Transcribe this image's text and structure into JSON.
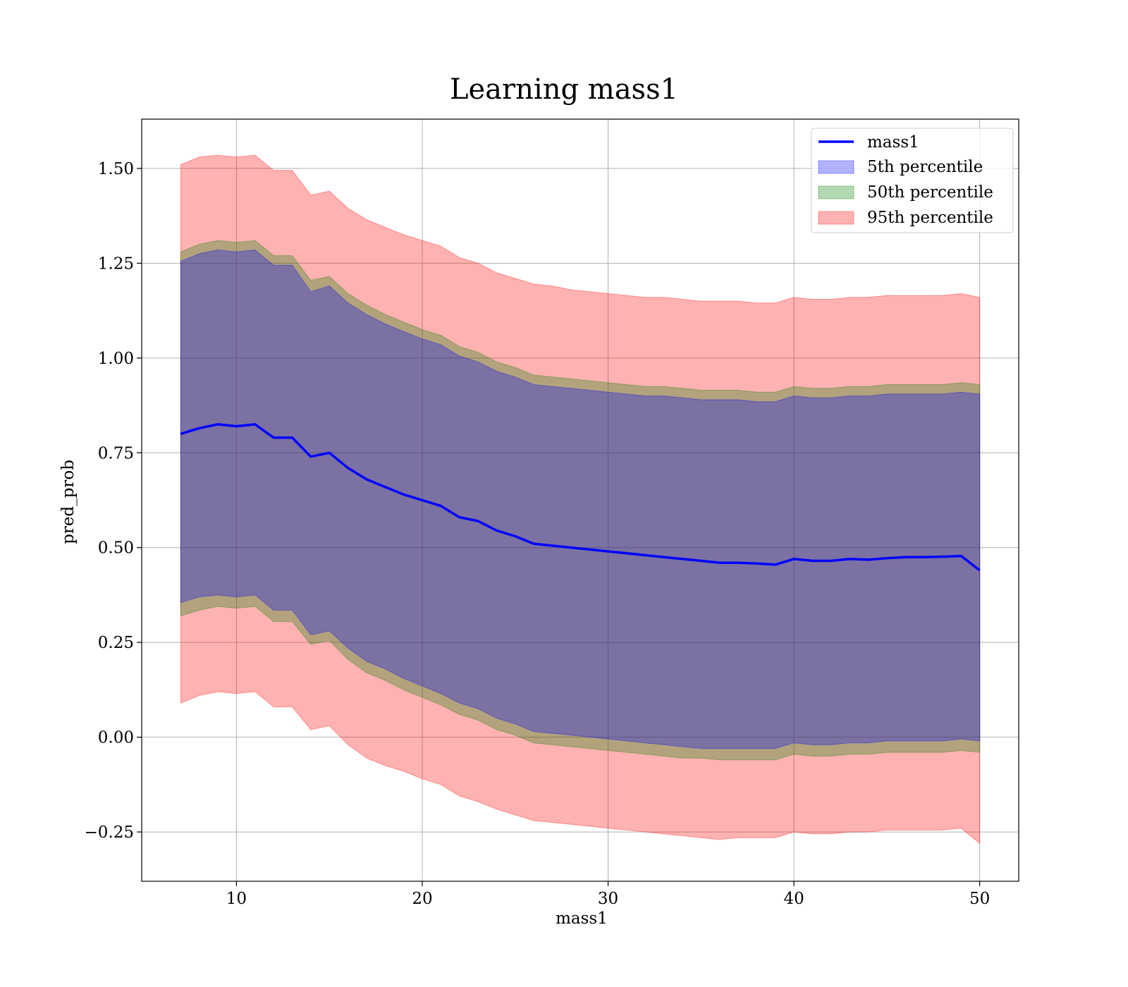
{
  "chart_data": {
    "type": "line",
    "title": "Learning mass1",
    "xlabel": "mass1",
    "ylabel": "pred_prob",
    "xlim": [
      4.9,
      52.1
    ],
    "ylim": [
      -0.38,
      1.63
    ],
    "xticks": [
      10,
      20,
      30,
      40,
      50
    ],
    "xtick_labels": [
      "10",
      "20",
      "30",
      "40",
      "50"
    ],
    "yticks": [
      -0.25,
      0.0,
      0.25,
      0.5,
      0.75,
      1.0,
      1.25,
      1.5
    ],
    "ytick_labels": [
      "−0.25",
      "0.00",
      "0.25",
      "0.50",
      "0.75",
      "1.00",
      "1.25",
      "1.50"
    ],
    "grid": true,
    "legend_position": "top-right",
    "x": [
      7,
      8,
      9,
      10,
      11,
      12,
      13,
      14,
      15,
      16,
      17,
      18,
      19,
      20,
      21,
      22,
      23,
      24,
      25,
      26,
      27,
      28,
      29,
      30,
      31,
      32,
      33,
      34,
      35,
      36,
      37,
      38,
      39,
      40,
      41,
      42,
      43,
      44,
      45,
      46,
      47,
      48,
      49,
      50
    ],
    "line_series": {
      "name": "mass1",
      "color": "#0000ff",
      "y": [
        0.8,
        0.815,
        0.825,
        0.82,
        0.825,
        0.79,
        0.79,
        0.74,
        0.75,
        0.71,
        0.68,
        0.66,
        0.64,
        0.625,
        0.61,
        0.58,
        0.57,
        0.545,
        0.53,
        0.51,
        0.505,
        0.5,
        0.495,
        0.49,
        0.485,
        0.48,
        0.475,
        0.47,
        0.465,
        0.46,
        0.46,
        0.458,
        0.455,
        0.47,
        0.465,
        0.465,
        0.47,
        0.468,
        0.472,
        0.475,
        0.475,
        0.476,
        0.478,
        0.44
      ]
    },
    "band_series": [
      {
        "name": "5th percentile",
        "color": "#0000ff",
        "lower": [
          0.355,
          0.37,
          0.375,
          0.37,
          0.375,
          0.335,
          0.335,
          0.27,
          0.28,
          0.235,
          0.2,
          0.18,
          0.155,
          0.135,
          0.115,
          0.09,
          0.075,
          0.05,
          0.035,
          0.015,
          0.01,
          0.005,
          0.0,
          -0.005,
          -0.01,
          -0.015,
          -0.02,
          -0.025,
          -0.03,
          -0.03,
          -0.03,
          -0.03,
          -0.03,
          -0.015,
          -0.02,
          -0.02,
          -0.015,
          -0.015,
          -0.01,
          -0.01,
          -0.01,
          -0.01,
          -0.005,
          -0.01
        ],
        "upper": [
          1.255,
          1.275,
          1.285,
          1.28,
          1.285,
          1.245,
          1.245,
          1.175,
          1.19,
          1.145,
          1.115,
          1.09,
          1.07,
          1.05,
          1.035,
          1.005,
          0.99,
          0.965,
          0.95,
          0.93,
          0.925,
          0.92,
          0.915,
          0.91,
          0.905,
          0.9,
          0.9,
          0.895,
          0.89,
          0.89,
          0.89,
          0.885,
          0.885,
          0.9,
          0.895,
          0.895,
          0.9,
          0.9,
          0.905,
          0.905,
          0.905,
          0.905,
          0.91,
          0.905
        ]
      },
      {
        "name": "50th percentile",
        "color": "#008000",
        "lower": [
          0.32,
          0.335,
          0.345,
          0.34,
          0.345,
          0.305,
          0.305,
          0.245,
          0.255,
          0.205,
          0.17,
          0.15,
          0.125,
          0.105,
          0.085,
          0.06,
          0.045,
          0.02,
          0.005,
          -0.015,
          -0.02,
          -0.025,
          -0.03,
          -0.035,
          -0.04,
          -0.045,
          -0.05,
          -0.055,
          -0.055,
          -0.06,
          -0.06,
          -0.06,
          -0.06,
          -0.045,
          -0.05,
          -0.05,
          -0.045,
          -0.045,
          -0.04,
          -0.04,
          -0.04,
          -0.04,
          -0.035,
          -0.04
        ],
        "upper": [
          1.28,
          1.3,
          1.31,
          1.305,
          1.31,
          1.27,
          1.27,
          1.205,
          1.215,
          1.17,
          1.14,
          1.115,
          1.095,
          1.075,
          1.06,
          1.03,
          1.015,
          0.99,
          0.975,
          0.955,
          0.95,
          0.945,
          0.94,
          0.935,
          0.93,
          0.925,
          0.925,
          0.92,
          0.915,
          0.915,
          0.915,
          0.91,
          0.91,
          0.925,
          0.92,
          0.92,
          0.925,
          0.925,
          0.93,
          0.93,
          0.93,
          0.93,
          0.935,
          0.93
        ]
      },
      {
        "name": "95th percentile",
        "color": "#ff0000",
        "lower": [
          0.09,
          0.11,
          0.12,
          0.115,
          0.12,
          0.08,
          0.08,
          0.02,
          0.03,
          -0.02,
          -0.055,
          -0.075,
          -0.09,
          -0.11,
          -0.125,
          -0.155,
          -0.17,
          -0.19,
          -0.205,
          -0.22,
          -0.225,
          -0.23,
          -0.235,
          -0.24,
          -0.245,
          -0.25,
          -0.255,
          -0.26,
          -0.265,
          -0.27,
          -0.265,
          -0.265,
          -0.265,
          -0.25,
          -0.255,
          -0.255,
          -0.25,
          -0.25,
          -0.245,
          -0.245,
          -0.245,
          -0.245,
          -0.24,
          -0.28
        ],
        "upper": [
          1.51,
          1.53,
          1.535,
          1.53,
          1.535,
          1.495,
          1.495,
          1.43,
          1.44,
          1.395,
          1.365,
          1.345,
          1.325,
          1.31,
          1.295,
          1.265,
          1.25,
          1.225,
          1.21,
          1.195,
          1.19,
          1.18,
          1.175,
          1.17,
          1.165,
          1.16,
          1.16,
          1.155,
          1.15,
          1.15,
          1.15,
          1.145,
          1.145,
          1.16,
          1.155,
          1.155,
          1.16,
          1.16,
          1.165,
          1.165,
          1.165,
          1.165,
          1.17,
          1.16
        ]
      }
    ],
    "legend": {
      "line_label": "mass1",
      "entries": [
        "5th percentile",
        "50th percentile",
        "95th percentile"
      ]
    }
  }
}
